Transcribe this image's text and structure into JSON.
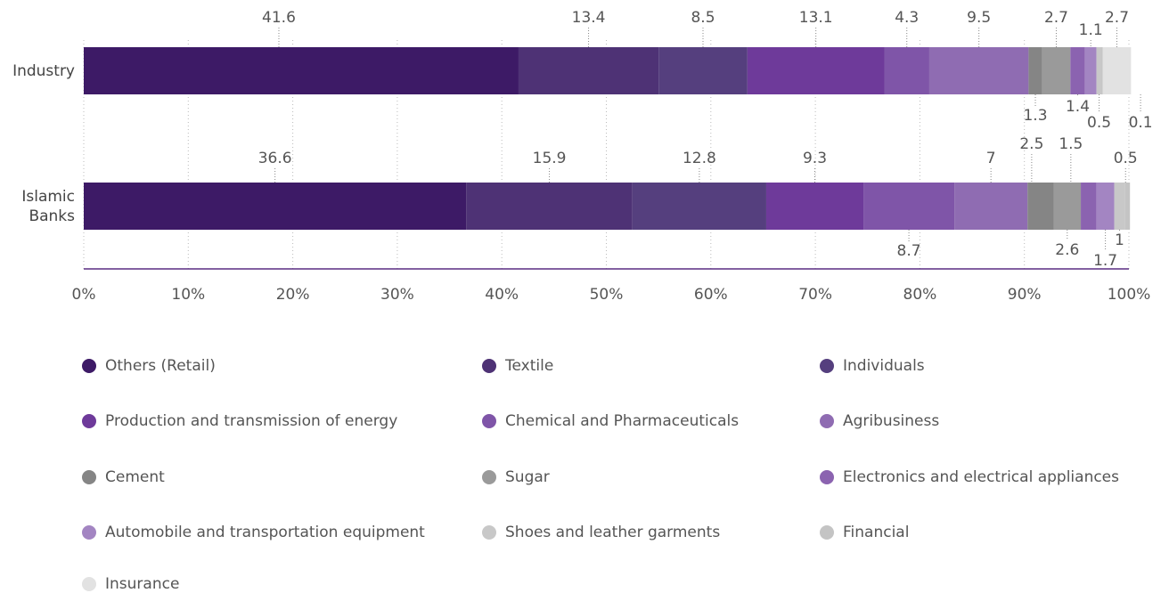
{
  "chart_data": {
    "type": "stacked-bar-horizontal",
    "categories": [
      "Industry",
      "Islamic Banks"
    ],
    "xlim": [
      0,
      100
    ],
    "xticks": [
      {
        "value": 0,
        "label": "0%"
      },
      {
        "value": 10,
        "label": "10%"
      },
      {
        "value": 20,
        "label": "20%"
      },
      {
        "value": 30,
        "label": "30%"
      },
      {
        "value": 40,
        "label": "40%"
      },
      {
        "value": 50,
        "label": "50%"
      },
      {
        "value": 60,
        "label": "60%"
      },
      {
        "value": 70,
        "label": "70%"
      },
      {
        "value": 80,
        "label": "80%"
      },
      {
        "value": 90,
        "label": "90%"
      },
      {
        "value": 100,
        "label": "100%"
      }
    ],
    "grid": true,
    "legend": "bottom",
    "series": [
      {
        "name": "Others (Retail)",
        "color": "#3d1a66",
        "values": [
          41.6,
          36.6
        ]
      },
      {
        "name": "Textile",
        "color": "#4e3275",
        "values": [
          13.4,
          15.9
        ]
      },
      {
        "name": "Individuals",
        "color": "#553f7e",
        "values": [
          8.5,
          12.8
        ]
      },
      {
        "name": "Production and transmission of energy",
        "color": "#6e3a9a",
        "values": [
          13.1,
          9.3
        ]
      },
      {
        "name": "Chemical and Pharmaceuticals",
        "color": "#7f55a8",
        "values": [
          4.3,
          8.7
        ]
      },
      {
        "name": "Agribusiness",
        "color": "#8f6cb2",
        "values": [
          9.5,
          7
        ]
      },
      {
        "name": "Cement",
        "color": "#858585",
        "values": [
          1.3,
          2.5
        ]
      },
      {
        "name": "Sugar",
        "color": "#9a9a9a",
        "values": [
          2.7,
          2.6
        ]
      },
      {
        "name": "Electronics and electrical appliances",
        "color": "#8b63b0",
        "values": [
          1.4,
          1.5
        ]
      },
      {
        "name": "Automobile and transportation equipment",
        "color": "#a385c2",
        "values": [
          1.1,
          1.7
        ]
      },
      {
        "name": "Shoes and leather garments",
        "color": "#c8c8c8",
        "values": [
          0.5,
          1
        ]
      },
      {
        "name": "Financial",
        "color": "#c4c4c4",
        "values": [
          0.1,
          0.5
        ]
      },
      {
        "name": "Insurance",
        "color": "#e2e2e2",
        "values": [
          2.7,
          null
        ]
      }
    ]
  }
}
